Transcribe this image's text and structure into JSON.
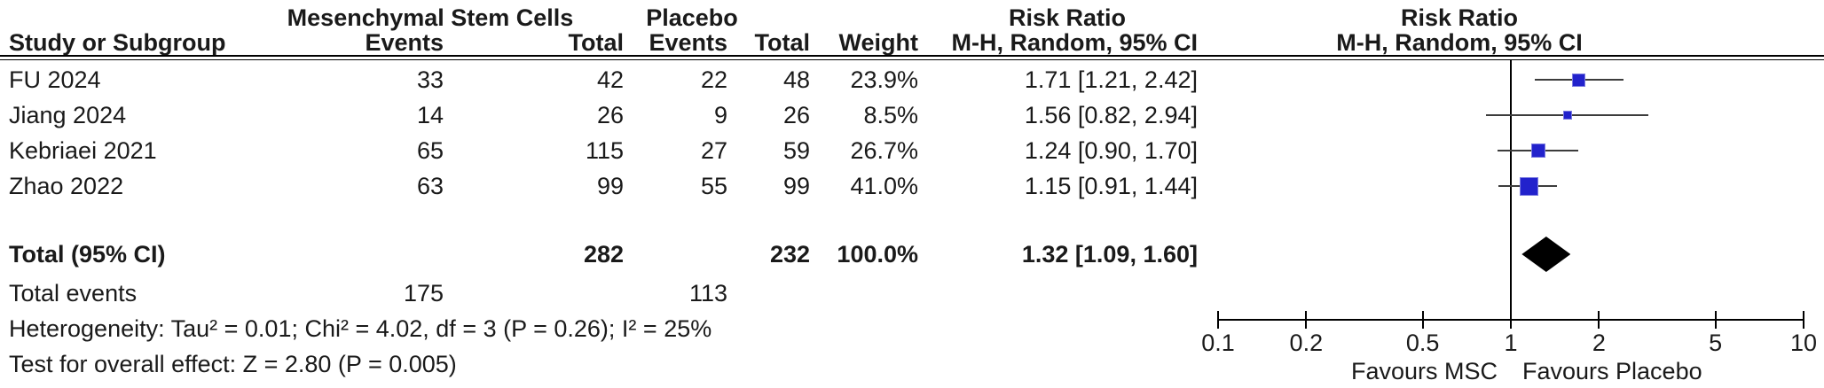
{
  "table": {
    "group1_header": "Mesenchymal Stem Cells",
    "group2_header": "Placebo",
    "col_study": "Study or Subgroup",
    "col_events": "Events",
    "col_total": "Total",
    "col_weight": "Weight",
    "col_rr": "Risk Ratio",
    "col_ci": "M-H, Random, 95% CI",
    "rows": [
      {
        "study": "FU 2024",
        "e1": "33",
        "t1": "42",
        "e2": "22",
        "t2": "48",
        "weight": "23.9%",
        "ci": "1.71 [1.21, 2.42]"
      },
      {
        "study": "Jiang 2024",
        "e1": "14",
        "t1": "26",
        "e2": "9",
        "t2": "26",
        "weight": "8.5%",
        "ci": "1.56 [0.82, 2.94]"
      },
      {
        "study": "Kebriaei 2021",
        "e1": "65",
        "t1": "115",
        "e2": "27",
        "t2": "59",
        "weight": "26.7%",
        "ci": "1.24 [0.90, 1.70]"
      },
      {
        "study": "Zhao 2022",
        "e1": "63",
        "t1": "99",
        "e2": "55",
        "t2": "99",
        "weight": "41.0%",
        "ci": "1.15 [0.91, 1.44]"
      }
    ],
    "total_row": {
      "label": "Total (95% CI)",
      "t1": "282",
      "t2": "232",
      "weight": "100.0%",
      "ci": "1.32 [1.09, 1.60]"
    },
    "total_events": {
      "label": "Total events",
      "e1": "175",
      "e2": "113"
    },
    "heterogeneity": "Heterogeneity: Tau² = 0.01; Chi² = 4.02, df = 3 (P = 0.26); I² = 25%",
    "overall_effect": "Test for overall effect: Z = 2.80 (P = 0.005)"
  },
  "chart_data": {
    "type": "forest",
    "x_scale": "log10",
    "axis_range": [
      0.1,
      10
    ],
    "axis_ticks": [
      "0.1",
      "0.2",
      "0.5",
      "1",
      "2",
      "5",
      "10"
    ],
    "null_line": 1,
    "studies": [
      {
        "label": "FU 2024",
        "rr": 1.71,
        "ci_low": 1.21,
        "ci_high": 2.42,
        "weight_pct": 23.9
      },
      {
        "label": "Jiang 2024",
        "rr": 1.56,
        "ci_low": 0.82,
        "ci_high": 2.94,
        "weight_pct": 8.5
      },
      {
        "label": "Kebriaei 2021",
        "rr": 1.24,
        "ci_low": 0.9,
        "ci_high": 1.7,
        "weight_pct": 26.7
      },
      {
        "label": "Zhao 2022",
        "rr": 1.15,
        "ci_low": 0.91,
        "ci_high": 1.44,
        "weight_pct": 41.0
      }
    ],
    "total": {
      "label": "Total (95% CI)",
      "rr": 1.32,
      "ci_low": 1.09,
      "ci_high": 1.6
    },
    "favours_left": "Favours MSC",
    "favours_right": "Favours Placebo",
    "marker_color": "#2222CC",
    "marker_edge_color": "#7b7be0",
    "diamond_color": "#000000",
    "line_color": "#3c3c3c"
  }
}
